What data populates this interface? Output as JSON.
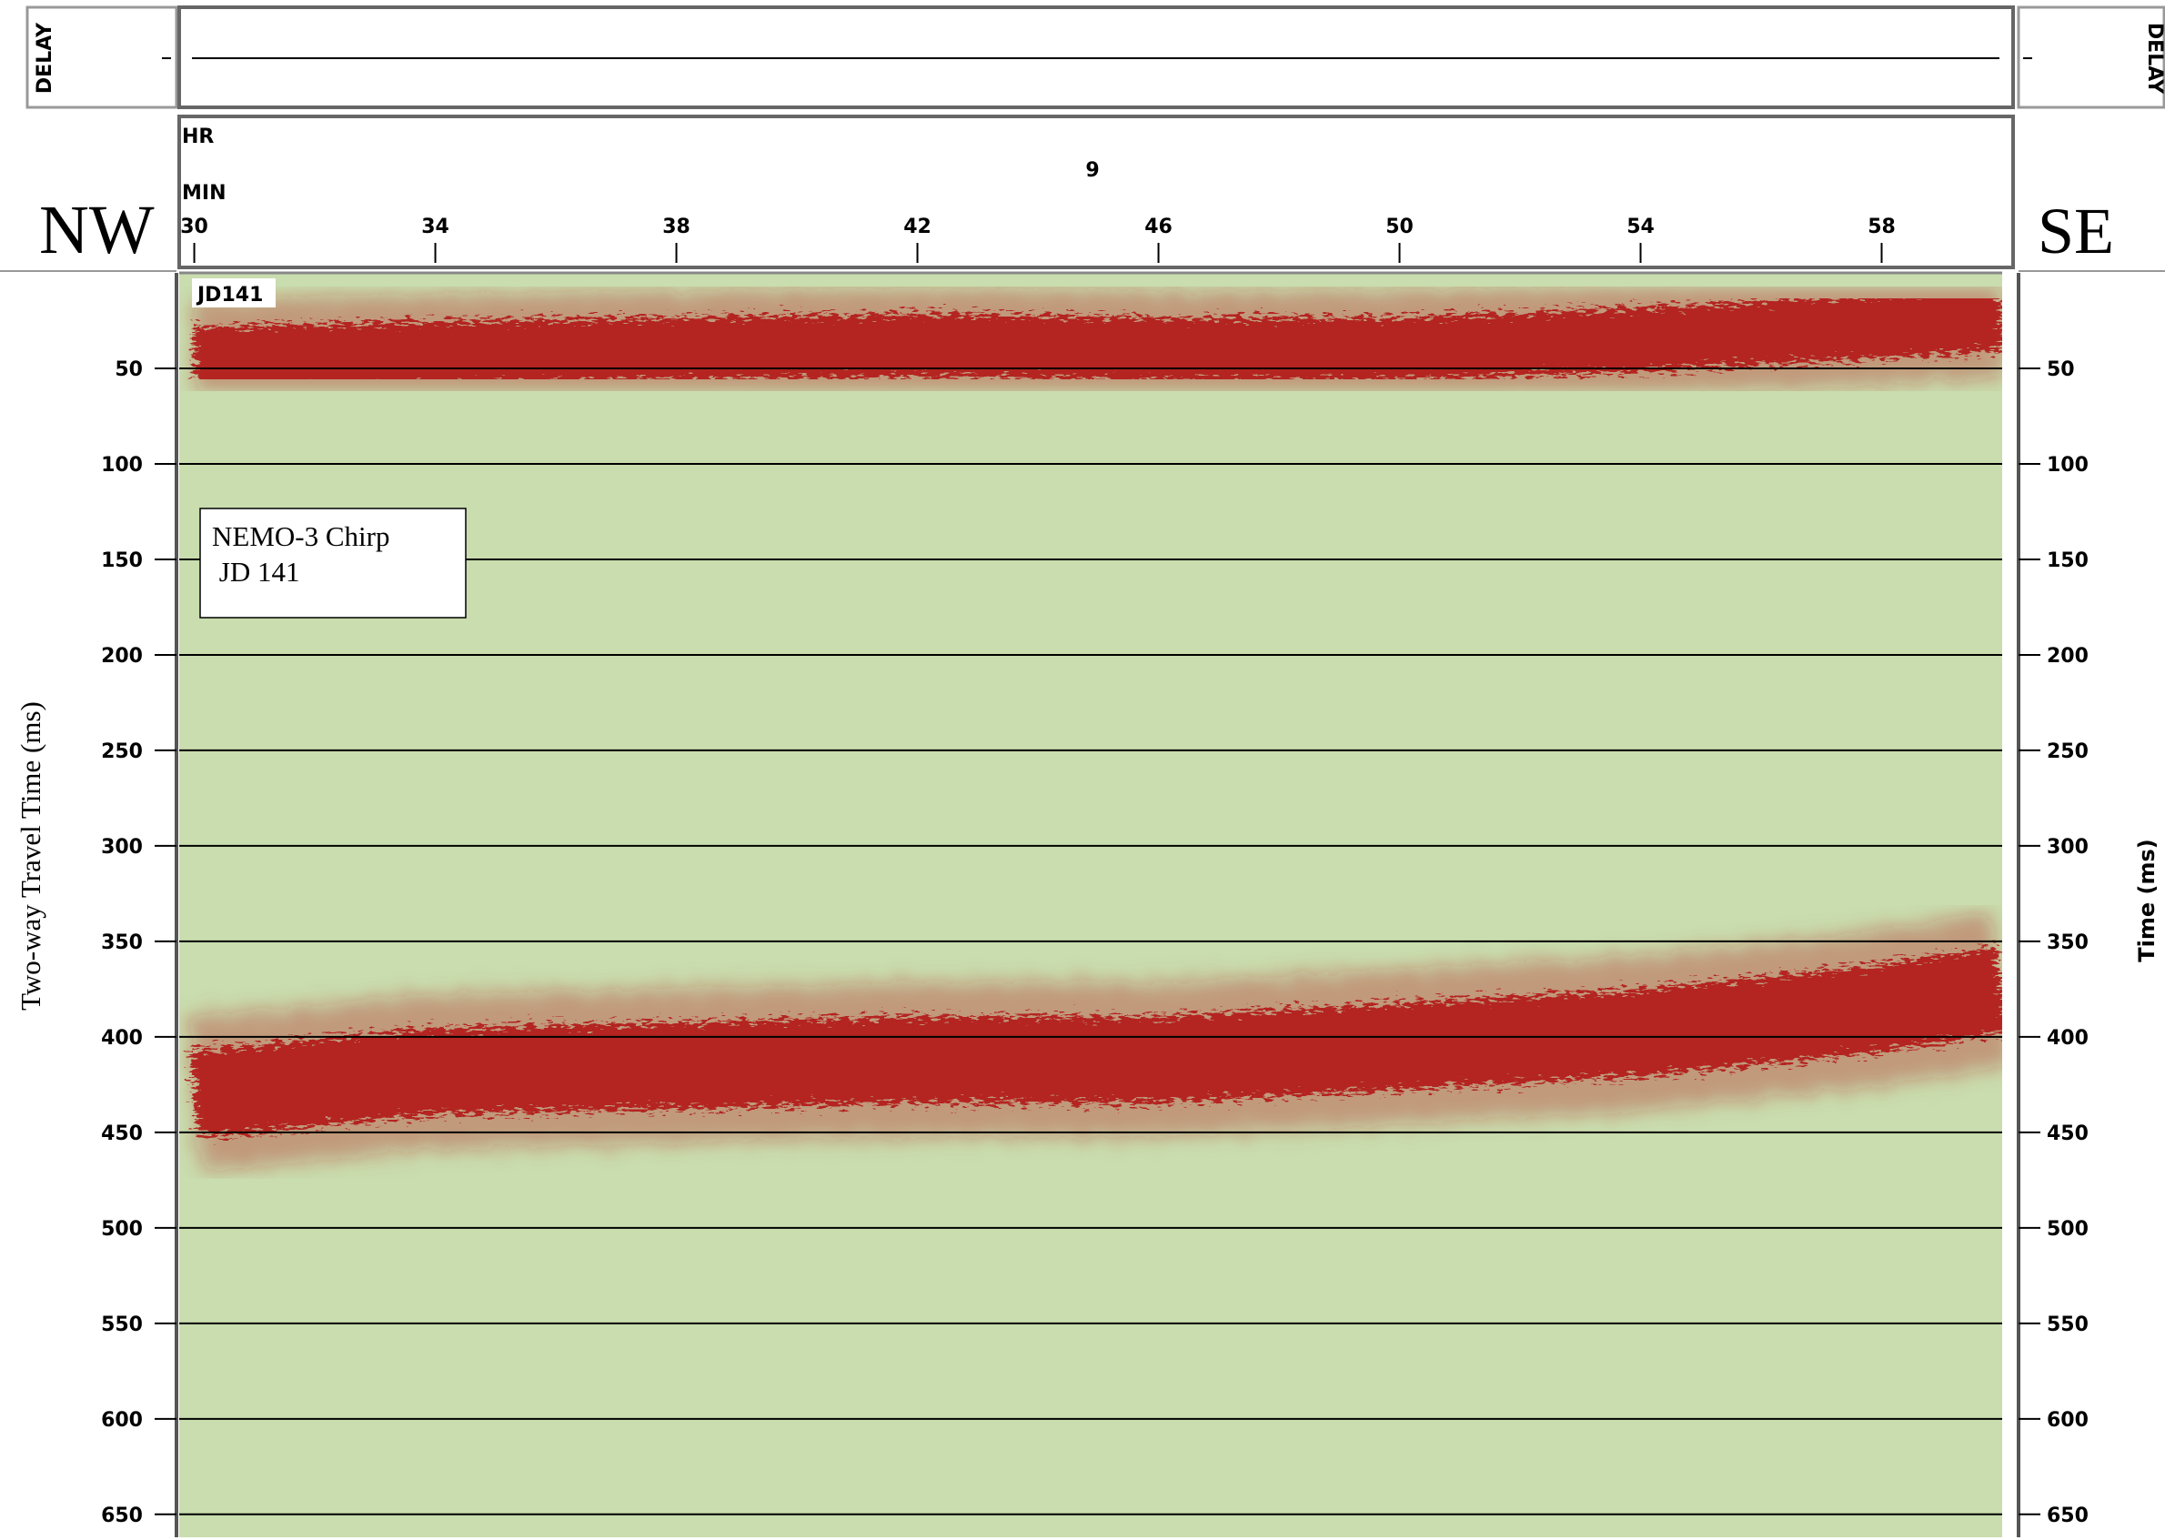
{
  "chart_data": {
    "type": "seismic",
    "delay_label": "DELAY",
    "hour_label": "HR",
    "hour": "9",
    "minute_label": "MIN",
    "left_label": "NW",
    "right_label": "SE",
    "line_label": "JD141",
    "annotation": [
      "NEMO-3 Chirp",
      " JD 141"
    ],
    "ylabel": "Two-way Travel Time (ms)",
    "y2label": "Time (ms)",
    "xlim": [
      29.75,
      60
    ],
    "xticks": [
      30,
      34,
      38,
      42,
      46,
      50,
      54,
      58
    ],
    "ylim": [
      0,
      662
    ],
    "yticks": [
      50,
      100,
      150,
      200,
      250,
      300,
      350,
      400,
      450,
      500,
      550,
      600,
      650
    ],
    "y2lim": [
      0,
      662
    ],
    "y2ticks": [
      50,
      100,
      150,
      200,
      250,
      300,
      350,
      400,
      450,
      500,
      550,
      600,
      650
    ],
    "grid": true,
    "background": "#c9ddae",
    "x": [
      30,
      34,
      38,
      42,
      46,
      50,
      54,
      58,
      60
    ],
    "series": [
      {
        "color": "#b3161a",
        "values": [
          45,
          42,
          40,
          38,
          40,
          40,
          35,
          28,
          24
        ]
      },
      {
        "color": "#b3161a",
        "values": [
          430,
          418,
          415,
          412,
          412,
          405,
          398,
          385,
          375
        ]
      }
    ]
  }
}
